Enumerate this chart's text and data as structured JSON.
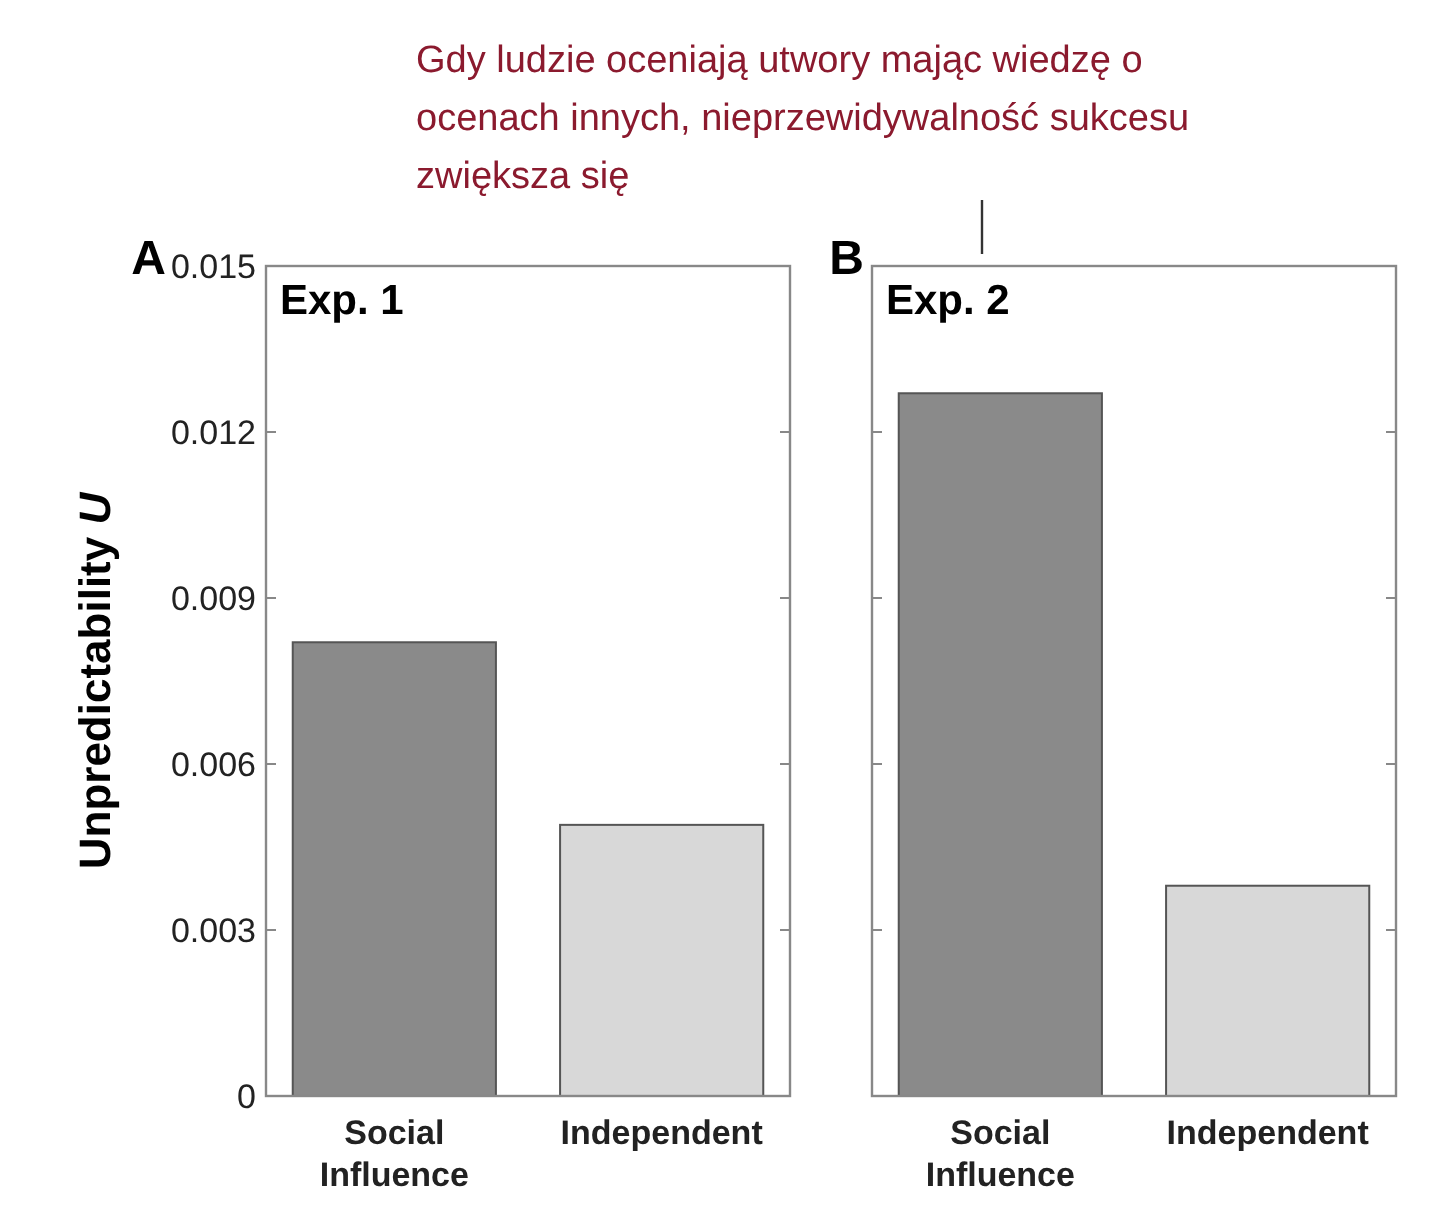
{
  "chart_data": [
    {
      "type": "bar",
      "title": "A",
      "subtitle": "Exp. 1",
      "ylabel": "Unpredictability $_{}$U",
      "categories": [
        "Social Influence",
        "Independent"
      ],
      "values": [
        0.0082,
        0.0049
      ],
      "colors": [
        "#8a8a8a",
        "#d8d8d8"
      ],
      "ylim": [
        0,
        0.015
      ],
      "yticks": [
        0,
        0.003,
        0.006,
        0.009,
        0.012,
        0.015
      ]
    },
    {
      "type": "bar",
      "title": "B",
      "subtitle": "Exp. 2",
      "categories": [
        "Social Influence",
        "Independent"
      ],
      "values": [
        0.0127,
        0.0038
      ],
      "colors": [
        "#8a8a8a",
        "#d8d8d8"
      ],
      "ylim": [
        0,
        0.015
      ],
      "yticks": [
        0,
        0.003,
        0.006,
        0.009,
        0.012,
        0.015
      ],
      "tick_labels": "x",
      "annotations": [
        "Gdy ludzie oceniają utwory mając wiedzę o ocenach innych, nieprzewidywalność sukcesu zwiększa się"
      ]
    }
  ]
}
